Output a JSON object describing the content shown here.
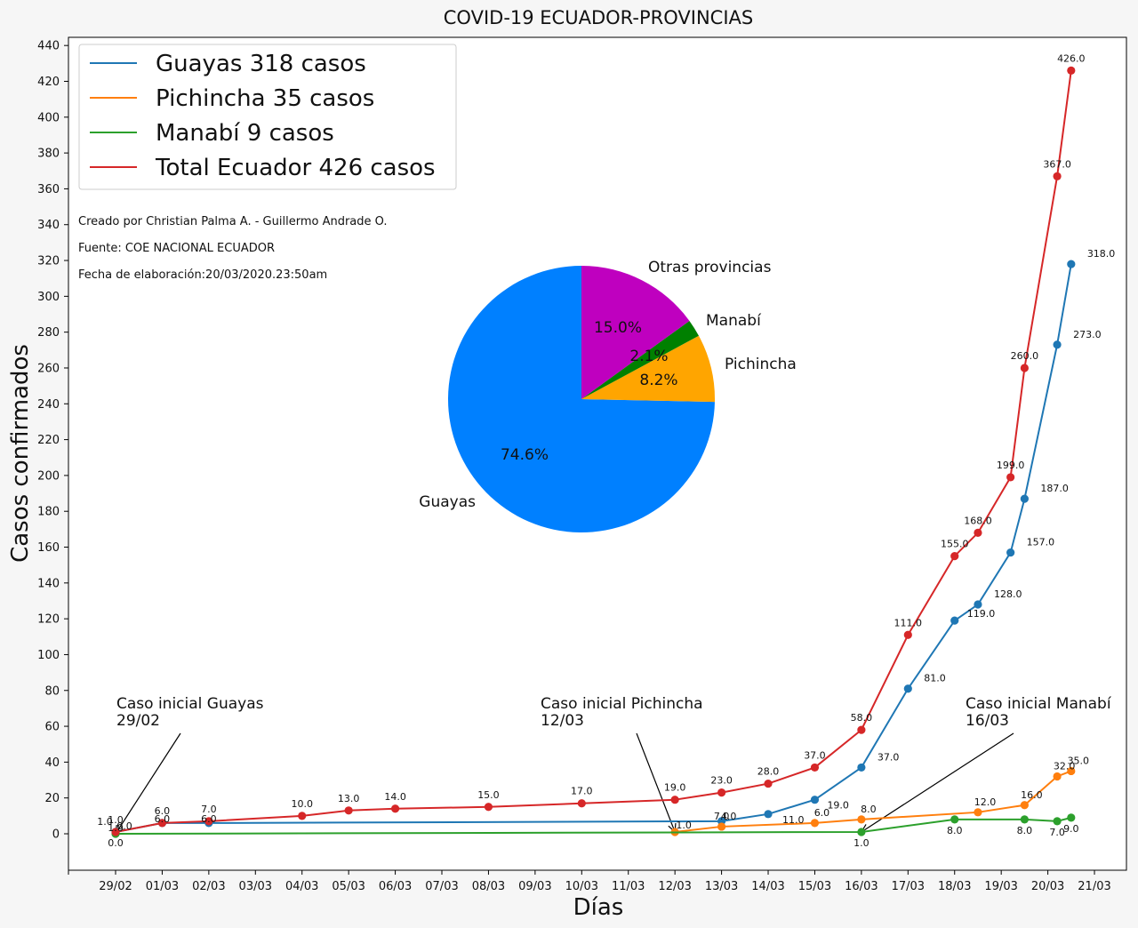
{
  "chart_data": [
    {
      "type": "line",
      "title": "COVID-19 ECUADOR-PROVINCIAS",
      "xlabel": "Días",
      "ylabel": "Casos confirmados",
      "x_ticks": [
        "29/02",
        "01/03",
        "02/03",
        "03/03",
        "04/03",
        "05/03",
        "06/03",
        "07/03",
        "08/03",
        "09/03",
        "10/03",
        "11/03",
        "12/03",
        "13/03",
        "14/03",
        "15/03",
        "16/03",
        "17/03",
        "18/03",
        "19/03",
        "20/03",
        "21/03"
      ],
      "y_ticks": [
        0,
        20,
        40,
        60,
        80,
        100,
        120,
        140,
        160,
        180,
        200,
        220,
        240,
        260,
        280,
        300,
        320,
        340,
        360,
        380,
        400,
        420,
        440
      ],
      "xlim": [
        -1,
        21.3
      ],
      "ylim": [
        -20,
        445
      ],
      "grid": false,
      "legend_position": "top-left",
      "series": [
        {
          "name": "Guayas 318 casos",
          "color": "#1f77b4",
          "x": [
            0,
            1,
            2,
            13,
            14,
            15,
            16,
            17,
            18,
            18.5,
            19.2,
            19.5,
            20.2,
            20.5
          ],
          "y": [
            1,
            6,
            6,
            7,
            11,
            19,
            37,
            81,
            119,
            128,
            157,
            187,
            273,
            318
          ],
          "labels": [
            "1.0",
            "6.0",
            "6.0",
            "7.0",
            "11.0",
            "19.0",
            "37.0",
            "81.0",
            "119.0",
            "128.0",
            "157.0",
            "187.0",
            "273.0",
            "318.0"
          ]
        },
        {
          "name": "Pichincha 35 casos",
          "color": "#ff7f0e",
          "x": [
            12,
            13,
            15,
            16,
            18.5,
            19.5,
            20.2,
            20.5
          ],
          "y": [
            1,
            4,
            6,
            8,
            12,
            16,
            32,
            35
          ],
          "labels": [
            "1.0",
            "4.0",
            "6.0",
            "8.0",
            "12.0",
            "16.0",
            "32.0",
            "35.0"
          ]
        },
        {
          "name": "Manabí 9 casos",
          "color": "#2ca02c",
          "x": [
            0,
            16,
            18,
            19.5,
            20.2,
            20.5
          ],
          "y": [
            0,
            1,
            8,
            8,
            7,
            9
          ],
          "labels": [
            "0.0",
            "1.0",
            "8.0",
            "8.0",
            "7.0",
            "9.0"
          ]
        },
        {
          "name": "Total Ecuador 426 casos",
          "color": "#d62728",
          "x": [
            0,
            1,
            2,
            4,
            5,
            6,
            8,
            10,
            12,
            13,
            14,
            15,
            16,
            17,
            18,
            18.5,
            19.2,
            19.5,
            20.2,
            20.5
          ],
          "y": [
            1,
            6,
            7,
            10,
            13,
            14,
            15,
            17,
            19,
            23,
            28,
            37,
            58,
            111,
            155,
            168,
            199,
            260,
            367,
            426
          ],
          "labels": [
            "1.0",
            "6.0",
            "7.0",
            "10.0",
            "13.0",
            "14.0",
            "15.0",
            "17.0",
            "19.0",
            "23.0",
            "28.0",
            "37.0",
            "58.0",
            "111.0",
            "155.0",
            "168.0",
            "199.0",
            "260.0",
            "367.0",
            "426.0"
          ]
        }
      ],
      "extra_labels": [
        {
          "text": "1.0",
          "series": "Guayas 318 casos",
          "index": 0
        },
        {
          "text": "0.0",
          "series": "Guayas 318 casos",
          "index": 0
        }
      ],
      "annotations": [
        {
          "text": [
            "Caso inicial Guayas",
            "29/02"
          ],
          "target_x": 0,
          "target_y": 0
        },
        {
          "text": [
            "Caso inicial Pichincha",
            "12/03"
          ],
          "target_x": 12,
          "target_y": 1
        },
        {
          "text": [
            "Caso inicial Manabí",
            "16/03"
          ],
          "target_x": 16,
          "target_y": 1
        }
      ]
    },
    {
      "type": "pie",
      "labels": [
        "Guayas",
        "Pichincha",
        "Manabí",
        "Otras provincias"
      ],
      "values": [
        74.6,
        8.2,
        2.1,
        15.0
      ],
      "pct_labels": [
        "74.6%",
        "8.2%",
        "2.1%",
        "15.0%"
      ],
      "colors": [
        "#0080ff",
        "#ffa500",
        "#008000",
        "#bf00bf"
      ],
      "start_angle_deg": 90
    }
  ],
  "notes": [
    "Creado por Christian Palma A. - Guillermo Andrade O.",
    "Fuente: COE NACIONAL ECUADOR",
    "Fecha de elaboración:20/03/2020.23:50am"
  ]
}
